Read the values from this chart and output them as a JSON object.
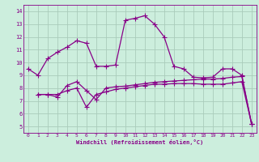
{
  "xlabel": "Windchill (Refroidissement éolien,°C)",
  "bg_color": "#cceedd",
  "grid_color": "#aaccbb",
  "line_color": "#880088",
  "markersize": 2.5,
  "linewidth": 0.9,
  "xlim": [
    -0.5,
    23.5
  ],
  "ylim": [
    4.5,
    14.5
  ],
  "xticks": [
    0,
    1,
    2,
    3,
    4,
    5,
    6,
    7,
    8,
    9,
    10,
    11,
    12,
    13,
    14,
    15,
    16,
    17,
    18,
    19,
    20,
    21,
    22,
    23
  ],
  "yticks": [
    5,
    6,
    7,
    8,
    9,
    10,
    11,
    12,
    13,
    14
  ],
  "series1_x": [
    0,
    1,
    2,
    3,
    4,
    5,
    6,
    7,
    8,
    9,
    10,
    11,
    12,
    13,
    14,
    15,
    16,
    17,
    18,
    19,
    20,
    21,
    22,
    23
  ],
  "series1_y": [
    9.5,
    9.0,
    10.3,
    10.8,
    11.2,
    11.7,
    11.5,
    9.7,
    9.7,
    9.8,
    13.3,
    13.45,
    13.65,
    13.0,
    12.0,
    9.7,
    9.5,
    8.85,
    8.8,
    8.85,
    9.5,
    9.5,
    9.0,
    5.2
  ],
  "series2_x": [
    1,
    2,
    3,
    4,
    5,
    6,
    7,
    8,
    9,
    10,
    11,
    12,
    13,
    14,
    15,
    16,
    17,
    18,
    19,
    20,
    21,
    22,
    23
  ],
  "series2_y": [
    7.5,
    7.5,
    7.3,
    8.2,
    8.5,
    7.8,
    7.1,
    8.0,
    8.1,
    8.15,
    8.25,
    8.35,
    8.45,
    8.5,
    8.55,
    8.6,
    8.65,
    8.7,
    8.7,
    8.75,
    8.85,
    8.9,
    5.2
  ],
  "series3_x": [
    1,
    2,
    3,
    4,
    5,
    6,
    7,
    8,
    9,
    10,
    11,
    12,
    13,
    14,
    15,
    16,
    17,
    18,
    19,
    20,
    21,
    22,
    23
  ],
  "series3_y": [
    7.5,
    7.5,
    7.5,
    7.8,
    8.0,
    6.5,
    7.5,
    7.7,
    7.9,
    8.0,
    8.1,
    8.2,
    8.3,
    8.3,
    8.35,
    8.35,
    8.35,
    8.3,
    8.3,
    8.3,
    8.4,
    8.5,
    5.2
  ]
}
